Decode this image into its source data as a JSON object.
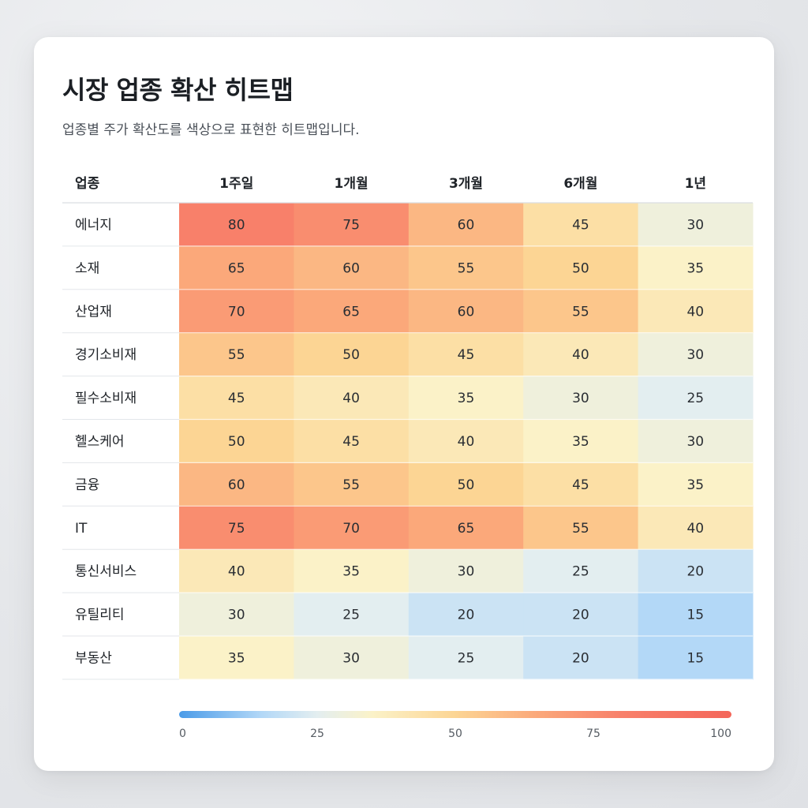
{
  "chart_data": {
    "type": "heatmap",
    "title": "시장 업종 확산 히트맵",
    "subtitle": "업종별 주가 확산도를 색상으로 표현한 히트맵입니다.",
    "corner_label": "업종",
    "columns": [
      "1주일",
      "1개월",
      "3개월",
      "6개월",
      "1년"
    ],
    "rows": [
      "에너지",
      "소재",
      "산업재",
      "경기소비재",
      "필수소비재",
      "헬스케어",
      "금융",
      "IT",
      "통신서비스",
      "유틸리티",
      "부동산"
    ],
    "values": [
      [
        80,
        75,
        60,
        45,
        30
      ],
      [
        65,
        60,
        55,
        50,
        35
      ],
      [
        70,
        65,
        60,
        55,
        40
      ],
      [
        55,
        50,
        45,
        40,
        30
      ],
      [
        45,
        40,
        35,
        30,
        25
      ],
      [
        50,
        45,
        40,
        35,
        30
      ],
      [
        60,
        55,
        50,
        45,
        35
      ],
      [
        75,
        70,
        65,
        55,
        40
      ],
      [
        40,
        35,
        30,
        25,
        20
      ],
      [
        30,
        25,
        20,
        20,
        15
      ],
      [
        35,
        30,
        25,
        20,
        15
      ]
    ],
    "color_scale": {
      "range": [
        0,
        100
      ],
      "ticks": [
        0,
        25,
        50,
        75,
        100
      ],
      "stops": [
        {
          "value": 0,
          "color": "#4a9be8"
        },
        {
          "value": 15,
          "color": "#b3d8f7"
        },
        {
          "value": 25,
          "color": "#e3eef0"
        },
        {
          "value": 35,
          "color": "#fbf2c8"
        },
        {
          "value": 50,
          "color": "#fcd594"
        },
        {
          "value": 65,
          "color": "#fba87a"
        },
        {
          "value": 80,
          "color": "#f8806a"
        },
        {
          "value": 100,
          "color": "#f4665a"
        }
      ]
    }
  }
}
